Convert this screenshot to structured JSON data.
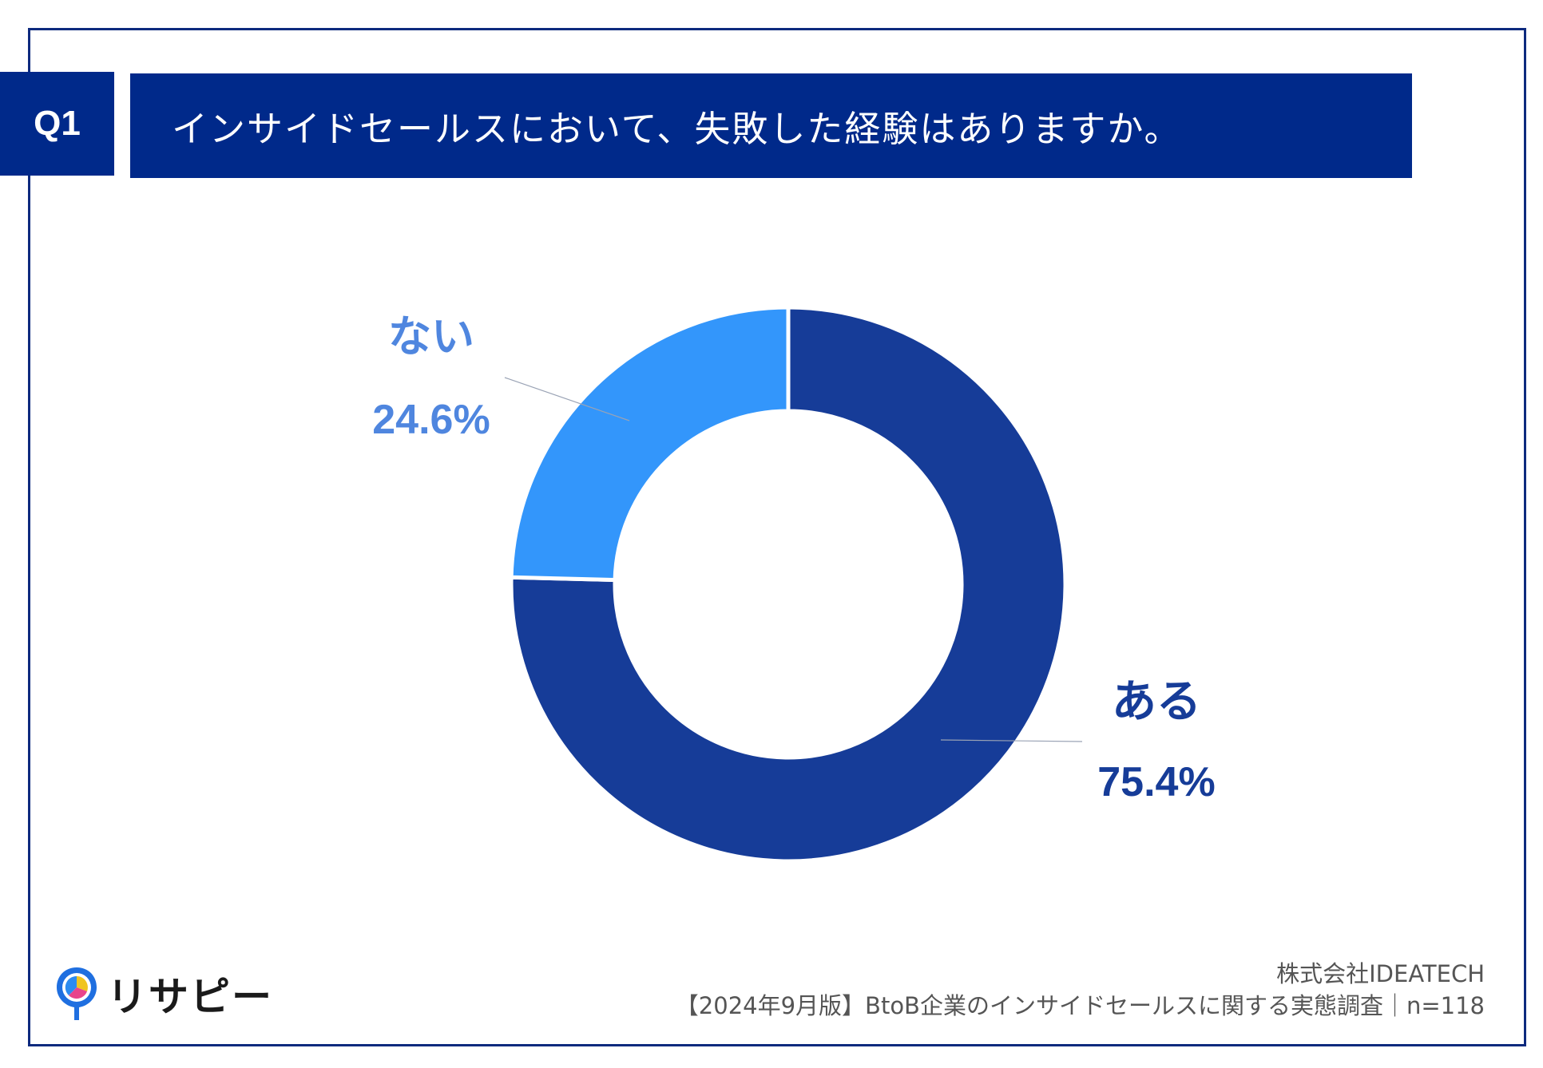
{
  "header": {
    "question_number": "Q1",
    "question_text": "インサイドセールスにおいて、失敗した経験はありますか。"
  },
  "chart_data": {
    "type": "pie",
    "variant": "donut",
    "title": "",
    "categories": [
      "ある",
      "ない"
    ],
    "values": [
      75.4,
      24.6
    ],
    "unit": "%",
    "value_labels": [
      "75.4%",
      "24.6%"
    ],
    "colors": [
      "#163c98",
      "#3396fb"
    ],
    "label_colors": [
      "#163c98",
      "#4f86df"
    ],
    "start_angle": "12 o'clock",
    "direction": "clockwise",
    "legend": "none"
  },
  "footer": {
    "company": "株式会社IDEATECH",
    "source": "【2024年9月版】BtoB企業のインサイドセールスに関する実態調査｜n=118"
  },
  "logo": {
    "text": "リサピー",
    "icon": "location-pin-pie-icon"
  }
}
